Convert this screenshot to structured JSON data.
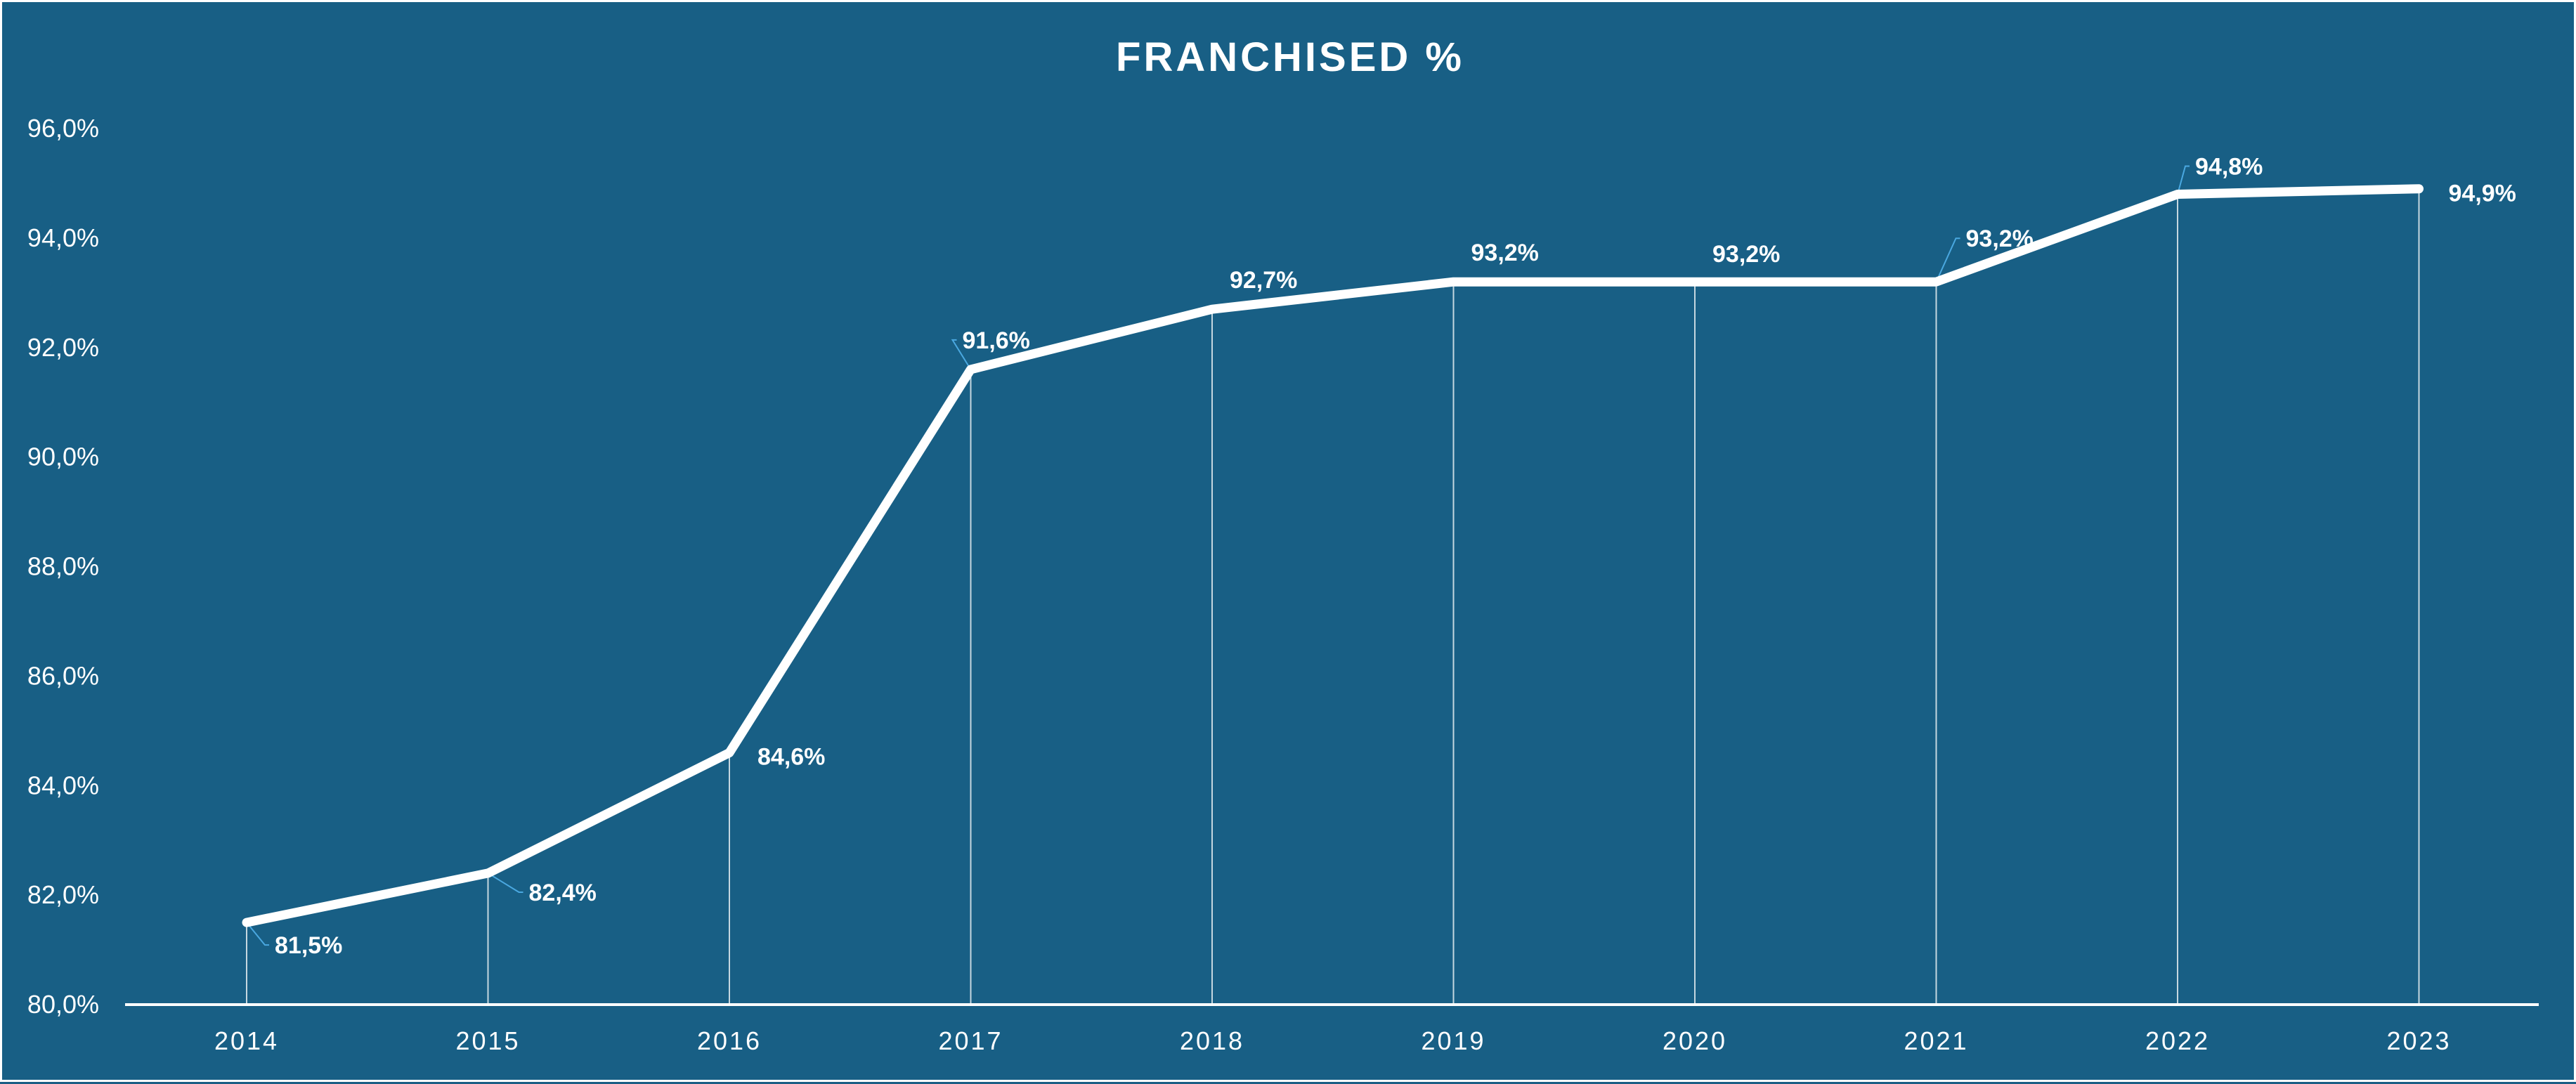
{
  "colors": {
    "background": "#185f85",
    "line": "#ffffff",
    "leader": "#4aa8e0",
    "text": "#ffffff"
  },
  "chart_data": {
    "type": "line",
    "title": "FRANCHISED %",
    "xlabel": "",
    "ylabel": "",
    "categories": [
      "2014",
      "2015",
      "2016",
      "2017",
      "2018",
      "2019",
      "2020",
      "2021",
      "2022",
      "2023"
    ],
    "series": [
      {
        "values": [
          81.5,
          82.4,
          84.6,
          91.6,
          92.7,
          93.2,
          93.2,
          93.2,
          94.8,
          94.9
        ]
      }
    ],
    "data_labels": [
      "81,5%",
      "82,4%",
      "84,6%",
      "91,6%",
      "92,7%",
      "93,2%",
      "93,2%",
      "93,2%",
      "94,8%",
      "94,9%"
    ],
    "ylim": [
      80,
      96
    ],
    "yticks": [
      "80,0%",
      "82,0%",
      "84,0%",
      "86,0%",
      "88,0%",
      "90,0%",
      "92,0%",
      "94,0%",
      "96,0%"
    ],
    "grid": false,
    "drop_lines": true,
    "legend": "none"
  }
}
